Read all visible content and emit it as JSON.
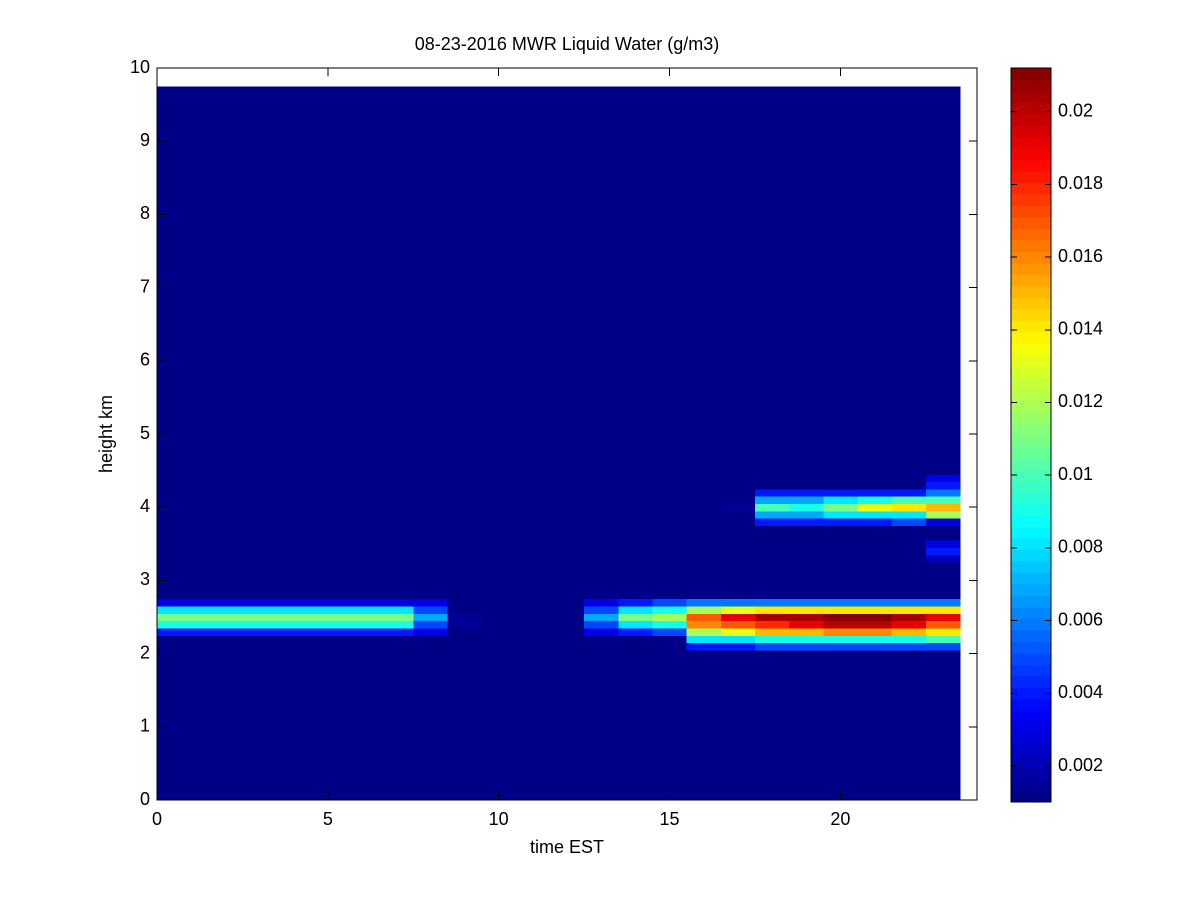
{
  "chart_data": {
    "type": "heatmap",
    "title": "08-23-2016 MWR Liquid Water (g/m3)",
    "x_label": "time EST",
    "y_label": "height km",
    "x_bins": [
      0,
      0.5,
      1.5,
      2.5,
      3.5,
      4.5,
      5.5,
      6.5,
      7.5,
      8.5,
      9.5,
      10.5,
      11.5,
      12.5,
      13.5,
      14.5,
      15.5,
      16.5,
      17.5,
      18.5,
      19.5,
      20.5,
      21.5,
      22.5,
      23.5
    ],
    "y_bins": [
      0,
      2.05,
      2.15,
      2.25,
      2.35,
      2.45,
      2.55,
      2.65,
      2.75,
      3.25,
      3.35,
      3.45,
      3.55,
      3.75,
      3.85,
      3.95,
      4.05,
      4.15,
      4.25,
      4.35,
      4.45,
      9.75
    ],
    "values": [
      [
        0.001,
        0.001,
        0.001,
        0.001,
        0.001,
        0.001,
        0.001,
        0.001,
        0.001,
        0.001,
        0.001,
        0.001,
        0.001,
        0.001,
        0.001,
        0.001,
        0.001,
        0.001,
        0.001,
        0.001,
        0.001,
        0.001,
        0.001,
        0.001
      ],
      [
        0.001,
        0.001,
        0.001,
        0.001,
        0.001,
        0.001,
        0.001,
        0.001,
        0.001,
        0.001,
        0.001,
        0.001,
        0.001,
        0.001,
        0.001,
        0.001,
        0.004,
        0.004,
        0.005,
        0.005,
        0.005,
        0.005,
        0.005,
        0.005
      ],
      [
        0.001,
        0.001,
        0.001,
        0.001,
        0.001,
        0.001,
        0.001,
        0.001,
        0.001,
        0.001,
        0.001,
        0.001,
        0.001,
        0.001,
        0.001,
        0.001,
        0.008,
        0.008,
        0.009,
        0.009,
        0.009,
        0.009,
        0.009,
        0.01
      ],
      [
        0.004,
        0.004,
        0.004,
        0.004,
        0.004,
        0.004,
        0.004,
        0.004,
        0.003,
        0.001,
        0.001,
        0.001,
        0.001,
        0.003,
        0.004,
        0.005,
        0.012,
        0.013,
        0.015,
        0.015,
        0.016,
        0.016,
        0.015,
        0.014
      ],
      [
        0.009,
        0.009,
        0.009,
        0.009,
        0.009,
        0.009,
        0.009,
        0.009,
        0.005,
        0.0015,
        0.001,
        0.001,
        0.001,
        0.005,
        0.008,
        0.009,
        0.016,
        0.017,
        0.018,
        0.019,
        0.02,
        0.02,
        0.019,
        0.017
      ],
      [
        0.011,
        0.011,
        0.011,
        0.011,
        0.011,
        0.011,
        0.011,
        0.011,
        0.007,
        0.0015,
        0.001,
        0.001,
        0.001,
        0.007,
        0.011,
        0.012,
        0.017,
        0.019,
        0.0205,
        0.0205,
        0.021,
        0.021,
        0.0205,
        0.019
      ],
      [
        0.008,
        0.008,
        0.008,
        0.008,
        0.008,
        0.008,
        0.008,
        0.008,
        0.005,
        0.001,
        0.001,
        0.001,
        0.001,
        0.005,
        0.008,
        0.009,
        0.012,
        0.013,
        0.014,
        0.014,
        0.014,
        0.014,
        0.014,
        0.014
      ],
      [
        0.003,
        0.003,
        0.003,
        0.003,
        0.003,
        0.003,
        0.003,
        0.003,
        0.003,
        0.001,
        0.001,
        0.001,
        0.001,
        0.003,
        0.004,
        0.005,
        0.006,
        0.006,
        0.006,
        0.006,
        0.006,
        0.006,
        0.006,
        0.006
      ],
      [
        0.001,
        0.001,
        0.001,
        0.001,
        0.001,
        0.001,
        0.001,
        0.001,
        0.001,
        0.001,
        0.001,
        0.001,
        0.001,
        0.001,
        0.001,
        0.001,
        0.001,
        0.001,
        0.001,
        0.001,
        0.001,
        0.001,
        0.001,
        0.001
      ],
      [
        0.001,
        0.001,
        0.001,
        0.001,
        0.001,
        0.001,
        0.001,
        0.001,
        0.001,
        0.001,
        0.001,
        0.001,
        0.001,
        0.001,
        0.001,
        0.001,
        0.001,
        0.001,
        0.001,
        0.001,
        0.001,
        0.001,
        0.001,
        0.002
      ],
      [
        0.001,
        0.001,
        0.001,
        0.001,
        0.001,
        0.001,
        0.001,
        0.001,
        0.001,
        0.001,
        0.001,
        0.001,
        0.001,
        0.001,
        0.001,
        0.001,
        0.001,
        0.001,
        0.001,
        0.001,
        0.001,
        0.001,
        0.001,
        0.004
      ],
      [
        0.001,
        0.001,
        0.001,
        0.001,
        0.001,
        0.001,
        0.001,
        0.001,
        0.001,
        0.001,
        0.001,
        0.001,
        0.001,
        0.001,
        0.001,
        0.001,
        0.001,
        0.001,
        0.001,
        0.001,
        0.001,
        0.001,
        0.001,
        0.003
      ],
      [
        0.001,
        0.001,
        0.001,
        0.001,
        0.001,
        0.001,
        0.001,
        0.001,
        0.001,
        0.001,
        0.001,
        0.001,
        0.001,
        0.001,
        0.001,
        0.001,
        0.001,
        0.001,
        0.001,
        0.001,
        0.001,
        0.001,
        0.001,
        0.001
      ],
      [
        0.001,
        0.001,
        0.001,
        0.001,
        0.001,
        0.001,
        0.001,
        0.001,
        0.001,
        0.001,
        0.001,
        0.001,
        0.001,
        0.001,
        0.001,
        0.001,
        0.001,
        0.001,
        0.004,
        0.004,
        0.004,
        0.004,
        0.005,
        0.003
      ],
      [
        0.001,
        0.001,
        0.001,
        0.001,
        0.001,
        0.001,
        0.001,
        0.001,
        0.001,
        0.001,
        0.001,
        0.001,
        0.001,
        0.001,
        0.001,
        0.001,
        0.001,
        0.001,
        0.007,
        0.007,
        0.008,
        0.008,
        0.008,
        0.012
      ],
      [
        0.001,
        0.001,
        0.001,
        0.001,
        0.001,
        0.001,
        0.001,
        0.001,
        0.001,
        0.001,
        0.001,
        0.001,
        0.001,
        0.001,
        0.001,
        0.001,
        0.001,
        0.0015,
        0.01,
        0.009,
        0.011,
        0.013,
        0.014,
        0.015
      ],
      [
        0.001,
        0.001,
        0.001,
        0.001,
        0.001,
        0.001,
        0.001,
        0.001,
        0.001,
        0.001,
        0.001,
        0.001,
        0.001,
        0.001,
        0.001,
        0.001,
        0.001,
        0.001,
        0.007,
        0.007,
        0.008,
        0.009,
        0.01,
        0.01
      ],
      [
        0.001,
        0.001,
        0.001,
        0.001,
        0.001,
        0.001,
        0.001,
        0.001,
        0.001,
        0.001,
        0.001,
        0.001,
        0.001,
        0.001,
        0.001,
        0.001,
        0.001,
        0.001,
        0.004,
        0.004,
        0.004,
        0.004,
        0.004,
        0.006
      ],
      [
        0.001,
        0.001,
        0.001,
        0.001,
        0.001,
        0.001,
        0.001,
        0.001,
        0.001,
        0.001,
        0.001,
        0.001,
        0.001,
        0.001,
        0.001,
        0.001,
        0.001,
        0.001,
        0.001,
        0.001,
        0.001,
        0.001,
        0.001,
        0.004
      ],
      [
        0.001,
        0.001,
        0.001,
        0.001,
        0.001,
        0.001,
        0.001,
        0.001,
        0.001,
        0.001,
        0.001,
        0.001,
        0.001,
        0.001,
        0.001,
        0.001,
        0.001,
        0.001,
        0.001,
        0.001,
        0.001,
        0.001,
        0.001,
        0.003
      ],
      [
        0.001,
        0.001,
        0.001,
        0.001,
        0.001,
        0.001,
        0.001,
        0.001,
        0.001,
        0.001,
        0.001,
        0.001,
        0.001,
        0.001,
        0.001,
        0.001,
        0.001,
        0.001,
        0.001,
        0.001,
        0.001,
        0.001,
        0.001,
        0.001
      ]
    ],
    "xlim": [
      0,
      24
    ],
    "ylim": [
      0,
      10
    ],
    "xticks": [
      0,
      5,
      10,
      15,
      20
    ],
    "yticks": [
      0,
      1,
      2,
      3,
      4,
      5,
      6,
      7,
      8,
      9,
      10
    ],
    "colorbar": {
      "colormap": "jet",
      "clim": [
        0.00101,
        0.0212
      ],
      "ticks": [
        0.002,
        0.004,
        0.006,
        0.008,
        0.01,
        0.012,
        0.014,
        0.016,
        0.018,
        0.02
      ]
    }
  }
}
